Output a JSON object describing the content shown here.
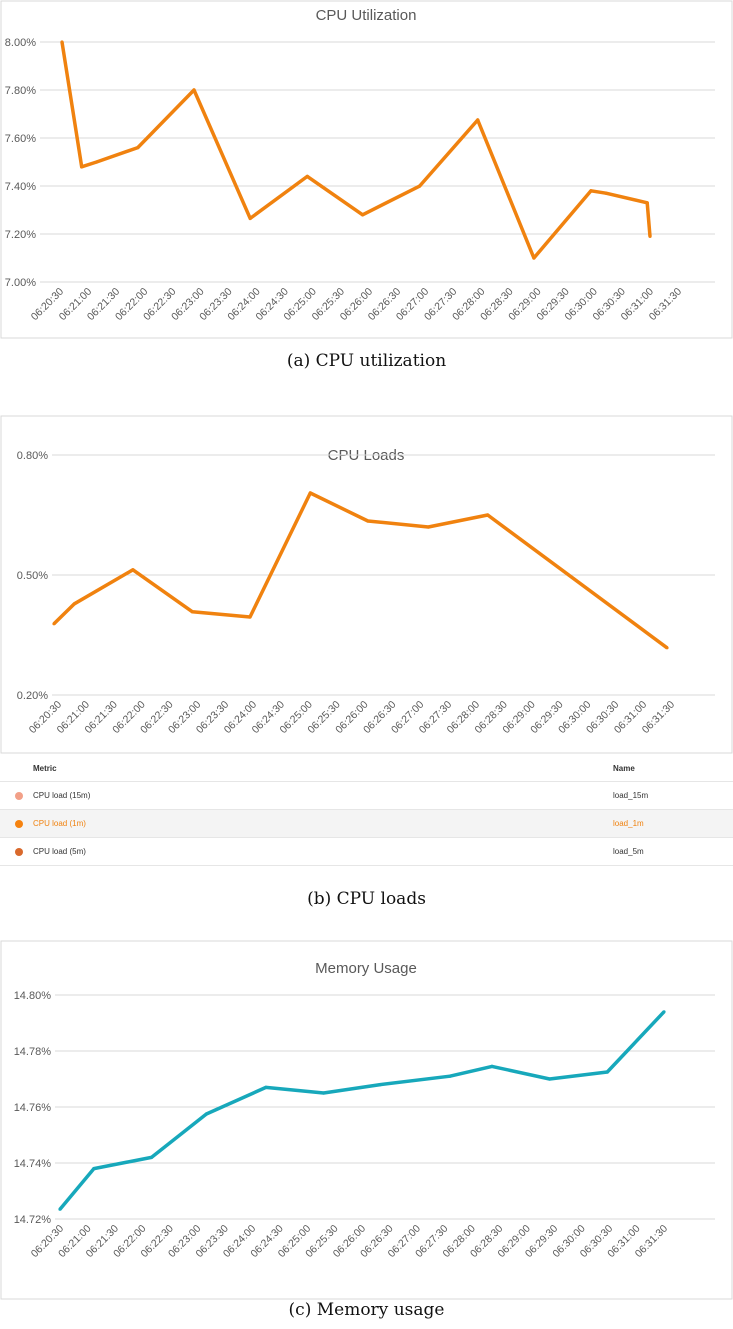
{
  "chart_data": [
    {
      "id": "cpu-utilization",
      "type": "line",
      "title": "CPU Utilization",
      "caption": "(a) CPU utilization",
      "xlabel": "",
      "ylabel": "",
      "x_unit": "seconds since 06:20:30",
      "xlim": [
        0,
        660
      ],
      "ylim": [
        7.0,
        8.0
      ],
      "y_ticks": [
        7.0,
        7.2,
        7.4,
        7.6,
        7.8,
        8.0
      ],
      "y_tick_labels": [
        "7.00%",
        "7.20%",
        "7.40%",
        "7.60%",
        "7.80%",
        "8.00%"
      ],
      "x_tick_labels": [
        "06:20:30",
        "06:21:00",
        "06:21:30",
        "06:22:00",
        "06:22:30",
        "06:23:00",
        "06:23:30",
        "06:24:00",
        "06:24:30",
        "06:25:00",
        "06:25:30",
        "06:26:00",
        "06:26:30",
        "06:27:00",
        "06:27:30",
        "06:28:00",
        "06:28:30",
        "06:29:00",
        "06:29:30",
        "06:30:00",
        "06:30:30",
        "06:31:00",
        "06:31:30"
      ],
      "grid": true,
      "series": [
        {
          "name": "CPU utilization",
          "color": "#f0820f",
          "x": [
            0,
            21,
            37,
            81,
            141,
            201,
            262,
            321,
            382,
            444,
            504,
            565,
            581,
            625,
            628
          ],
          "values": [
            8.0,
            7.48,
            7.5,
            7.56,
            7.8,
            7.265,
            7.44,
            7.28,
            7.4,
            7.675,
            7.1,
            7.38,
            7.37,
            7.33,
            7.19
          ]
        }
      ]
    },
    {
      "id": "cpu-loads",
      "type": "line",
      "title": "CPU Loads",
      "caption": "(b) CPU loads",
      "xlabel": "",
      "ylabel": "",
      "x_unit": "seconds since 06:20:30",
      "xlim": [
        0,
        660
      ],
      "ylim": [
        0.2,
        0.8
      ],
      "y_ticks": [
        0.2,
        0.5,
        0.8
      ],
      "y_tick_labels": [
        "0.20%",
        "0.50%",
        "0.80%"
      ],
      "x_tick_labels": [
        "06:20:30",
        "06:21:00",
        "06:21:30",
        "06:22:00",
        "06:22:30",
        "06:23:00",
        "06:23:30",
        "06:24:00",
        "06:24:30",
        "06:25:00",
        "06:25:30",
        "06:26:00",
        "06:26:30",
        "06:27:00",
        "06:27:30",
        "06:28:00",
        "06:28:30",
        "06:29:00",
        "06:29:30",
        "06:30:00",
        "06:30:30",
        "06:31:00",
        "06:31:30"
      ],
      "grid": true,
      "series": [
        {
          "name": "CPU load (1m)",
          "color": "#f0820f",
          "x": [
            0,
            22,
            85,
            149,
            211,
            276,
            338,
            403,
            467,
            660
          ],
          "values": [
            0.378,
            0.428,
            0.513,
            0.408,
            0.395,
            0.705,
            0.635,
            0.62,
            0.65,
            0.318
          ]
        }
      ],
      "legend": {
        "placement": "bottom",
        "headers": {
          "metric": "Metric",
          "name": "Name"
        },
        "rows": [
          {
            "metric": "CPU load (15m)",
            "name": "load_15m",
            "color": "#f2a088",
            "selected": false
          },
          {
            "metric": "CPU load (1m)",
            "name": "load_1m",
            "color": "#f5820f",
            "selected": true
          },
          {
            "metric": "CPU load (5m)",
            "name": "load_5m",
            "color": "#d9692c",
            "selected": false
          }
        ]
      }
    },
    {
      "id": "memory-usage",
      "type": "line",
      "title": "Memory Usage",
      "caption": "(c) Memory usage",
      "xlabel": "",
      "ylabel": "",
      "x_unit": "seconds since 06:20:30",
      "xlim": [
        0,
        660
      ],
      "ylim": [
        14.72,
        14.8
      ],
      "y_ticks": [
        14.72,
        14.74,
        14.76,
        14.78,
        14.8
      ],
      "y_tick_labels": [
        "14.72%",
        "14.74%",
        "14.76%",
        "14.78%",
        "14.80%"
      ],
      "x_tick_labels": [
        "06:20:30",
        "06:21:00",
        "06:21:30",
        "06:22:00",
        "06:22:30",
        "06:23:00",
        "06:23:30",
        "06:24:00",
        "06:24:30",
        "06:25:00",
        "06:25:30",
        "06:26:00",
        "06:26:30",
        "06:27:00",
        "06:27:30",
        "06:28:00",
        "06:28:30",
        "06:29:00",
        "06:29:30",
        "06:30:00",
        "06:30:30",
        "06:31:00",
        "06:31:30"
      ],
      "grid": true,
      "series": [
        {
          "name": "Memory usage",
          "color": "#17a8bb",
          "x": [
            0,
            37,
            100,
            160,
            225,
            288,
            350,
            426,
            472,
            535,
            598,
            660
          ],
          "values": [
            14.7235,
            14.738,
            14.742,
            14.7575,
            14.767,
            14.765,
            14.768,
            14.771,
            14.7745,
            14.77,
            14.7725,
            14.794
          ]
        }
      ]
    }
  ]
}
